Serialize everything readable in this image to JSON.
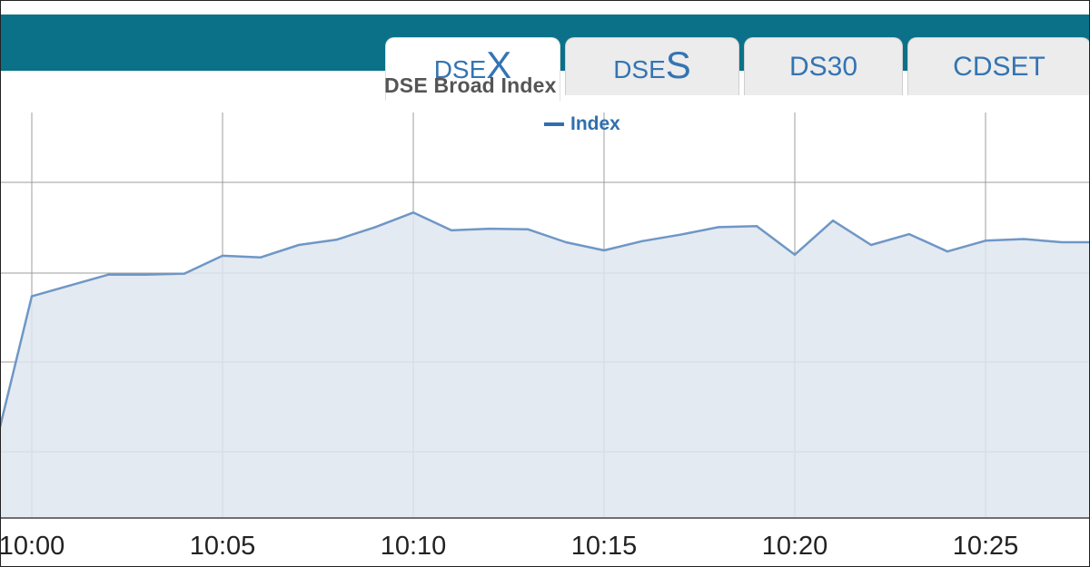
{
  "tabs": [
    {
      "prefix": "DSE",
      "suffix": "X",
      "active": true
    },
    {
      "prefix": "DSE",
      "suffix": "S",
      "active": false
    },
    {
      "label": "DS30",
      "active": false
    },
    {
      "label": "CDSET",
      "active": false
    }
  ],
  "chart_data": {
    "type": "area",
    "title": "DSE Broad Index",
    "legend": [
      "Index"
    ],
    "x_tick_labels": [
      "10:00",
      "10:05",
      "10:10",
      "10:15",
      "10:20",
      "10:25"
    ],
    "series": [
      {
        "name": "Index",
        "x": [
          "09:59",
          "10:00",
          "10:01",
          "10:02",
          "10:03",
          "10:04",
          "10:05",
          "10:06",
          "10:07",
          "10:08",
          "10:09",
          "10:10",
          "10:11",
          "10:12",
          "10:13",
          "10:14",
          "10:15",
          "10:16",
          "10:17",
          "10:18",
          "10:19",
          "10:20",
          "10:21",
          "10:22",
          "10:23",
          "10:24",
          "10:25",
          "10:26",
          "10:27",
          "10:28"
        ],
        "values": [
          1.2,
          4.1,
          4.3,
          4.5,
          4.5,
          4.52,
          4.85,
          4.82,
          5.05,
          5.15,
          5.38,
          5.65,
          5.32,
          5.35,
          5.34,
          5.1,
          4.95,
          5.12,
          5.24,
          5.38,
          5.4,
          4.87,
          5.5,
          5.05,
          5.25,
          4.93,
          5.13,
          5.16,
          5.1,
          5.1
        ]
      }
    ],
    "grid": true,
    "colors": {
      "line": "#6f97c6",
      "fill": "#dfe6ef",
      "grid": "#9c9c9c",
      "accent": "#0a7189"
    }
  }
}
